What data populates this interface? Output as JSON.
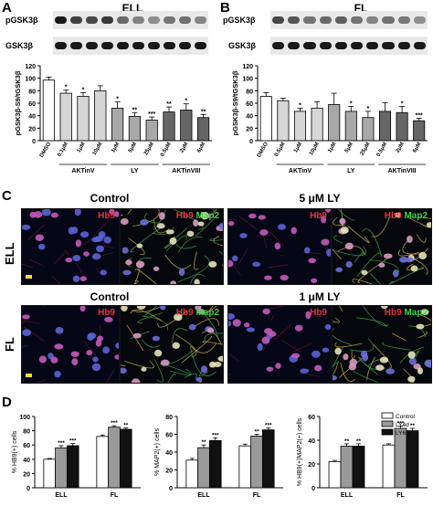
{
  "panels": {
    "A": {
      "letter": "A",
      "title": "ELL"
    },
    "B": {
      "letter": "B",
      "title": "FL"
    },
    "C": {
      "letter": "C"
    },
    "D": {
      "letter": "D"
    }
  },
  "blots": {
    "top_label": "pGSK3β",
    "bottom_label": "GSK3β"
  },
  "micrographs": {
    "row_ell": "ELL",
    "row_fl": "FL",
    "ell_control": "Control",
    "ell_treat": "5 μM LY",
    "fl_control": "Control",
    "fl_treat": "1 μM LY",
    "hb9": "Hb9",
    "map2": "Map2"
  },
  "colors": {
    "bar_black": "#111111",
    "bar_white": "#ffffff",
    "bar_grey": "#9a9a9a",
    "hb9_red": "#e8333a",
    "map2_green": "#3fd24a"
  },
  "chart_data": [
    {
      "id": "A",
      "type": "bar",
      "title": "ELL",
      "ylabel": "pGSK3β-S9/tGSK3β",
      "ylim": [
        0,
        120
      ],
      "yticks": [
        0,
        20,
        40,
        60,
        80,
        100,
        120
      ],
      "categories": [
        "DMSO",
        "0.1μM",
        "1μM",
        "10μM",
        "1μM",
        "5μM",
        "25μM",
        "0.5μM",
        "2μM",
        "6μM"
      ],
      "values": [
        97,
        76,
        71,
        80,
        52,
        39,
        33,
        46,
        49,
        37
      ],
      "errors": [
        5,
        5,
        6,
        8,
        10,
        6,
        5,
        8,
        10,
        5
      ],
      "fills": [
        "white",
        "lightgrey",
        "lightgrey",
        "lightgrey",
        "grey",
        "grey",
        "grey",
        "darkgrey",
        "darkgrey",
        "darkgrey"
      ],
      "significance": [
        "",
        "*",
        "*",
        "",
        "*",
        "**",
        "***",
        "**",
        "*",
        "**"
      ],
      "groups": [
        {
          "label": "AKTinV",
          "from": 1,
          "to": 3
        },
        {
          "label": "LY",
          "from": 4,
          "to": 6
        },
        {
          "label": "AKTinVIII",
          "from": 7,
          "to": 9
        }
      ]
    },
    {
      "id": "B",
      "type": "bar",
      "title": "FL",
      "ylabel": "pGSK3β-S9/tGSK3β",
      "ylim": [
        0,
        120
      ],
      "yticks": [
        0,
        20,
        40,
        60,
        80,
        100,
        120
      ],
      "categories": [
        "DMSO",
        "0.5μM",
        "1μM",
        "10μM",
        "1μM",
        "5μM",
        "25μM",
        "0.5μM",
        "2μM",
        "6μM"
      ],
      "values": [
        71,
        64,
        47,
        52,
        58,
        47,
        37,
        47,
        45,
        32
      ],
      "errors": [
        6,
        4,
        5,
        10,
        18,
        8,
        10,
        14,
        10,
        4
      ],
      "fills": [
        "white",
        "lightgrey",
        "lightgrey",
        "lightgrey",
        "grey",
        "grey",
        "grey",
        "darkgrey",
        "darkgrey",
        "darkgrey"
      ],
      "significance": [
        "",
        "",
        "*",
        "",
        "",
        "*",
        "*",
        "",
        "*",
        "***"
      ],
      "groups": [
        {
          "label": "AKTinV",
          "from": 1,
          "to": 3
        },
        {
          "label": "LY",
          "from": 4,
          "to": 6
        },
        {
          "label": "AKTinVIII",
          "from": 7,
          "to": 9
        }
      ]
    },
    {
      "id": "D1",
      "type": "bar",
      "ylabel": "% HB9(+) cells",
      "ylim": [
        0,
        100
      ],
      "yticks": [
        0,
        20,
        40,
        60,
        80,
        100
      ],
      "categories": [
        "ELL",
        "FL"
      ],
      "series": [
        {
          "name": "Control",
          "values": [
            40,
            72
          ],
          "errors": [
            1,
            2
          ]
        },
        {
          "name": "LY4d",
          "values": [
            56,
            85
          ],
          "errors": [
            3,
            2
          ]
        },
        {
          "name": "LY6d",
          "values": [
            59,
            82
          ],
          "errors": [
            3,
            2
          ]
        }
      ],
      "significance": [
        [
          "",
          "***",
          "***"
        ],
        [
          "",
          "***",
          "**"
        ]
      ]
    },
    {
      "id": "D2",
      "type": "bar",
      "ylabel": "% MAP2(+) cells",
      "ylim": [
        0,
        80
      ],
      "yticks": [
        0,
        20,
        40,
        60,
        80
      ],
      "categories": [
        "ELL",
        "FL"
      ],
      "series": [
        {
          "name": "Control",
          "values": [
            31,
            47
          ],
          "errors": [
            2,
            2
          ]
        },
        {
          "name": "LY4d",
          "values": [
            45,
            58
          ],
          "errors": [
            3,
            2
          ]
        },
        {
          "name": "LY6d",
          "values": [
            53,
            65
          ],
          "errors": [
            3,
            2
          ]
        }
      ],
      "significance": [
        [
          "",
          "**",
          "***"
        ],
        [
          "",
          "**",
          "***"
        ]
      ]
    },
    {
      "id": "D3",
      "type": "bar",
      "ylabel": "% HB9(+)MAP2(+) cells",
      "ylim": [
        0,
        60
      ],
      "yticks": [
        0,
        20,
        40,
        60
      ],
      "categories": [
        "ELL",
        "FL"
      ],
      "series": [
        {
          "name": "Control",
          "values": [
            22,
            36
          ],
          "errors": [
            1,
            1
          ]
        },
        {
          "name": "LY4d",
          "values": [
            35,
            50
          ],
          "errors": [
            2,
            2
          ]
        },
        {
          "name": "LY6d",
          "values": [
            35,
            48
          ],
          "errors": [
            2,
            2
          ]
        }
      ],
      "significance": [
        [
          "",
          "**",
          "**"
        ],
        [
          "",
          "***",
          "**"
        ]
      ],
      "legend": [
        "Control",
        "LY4d",
        "LY6d"
      ]
    }
  ]
}
